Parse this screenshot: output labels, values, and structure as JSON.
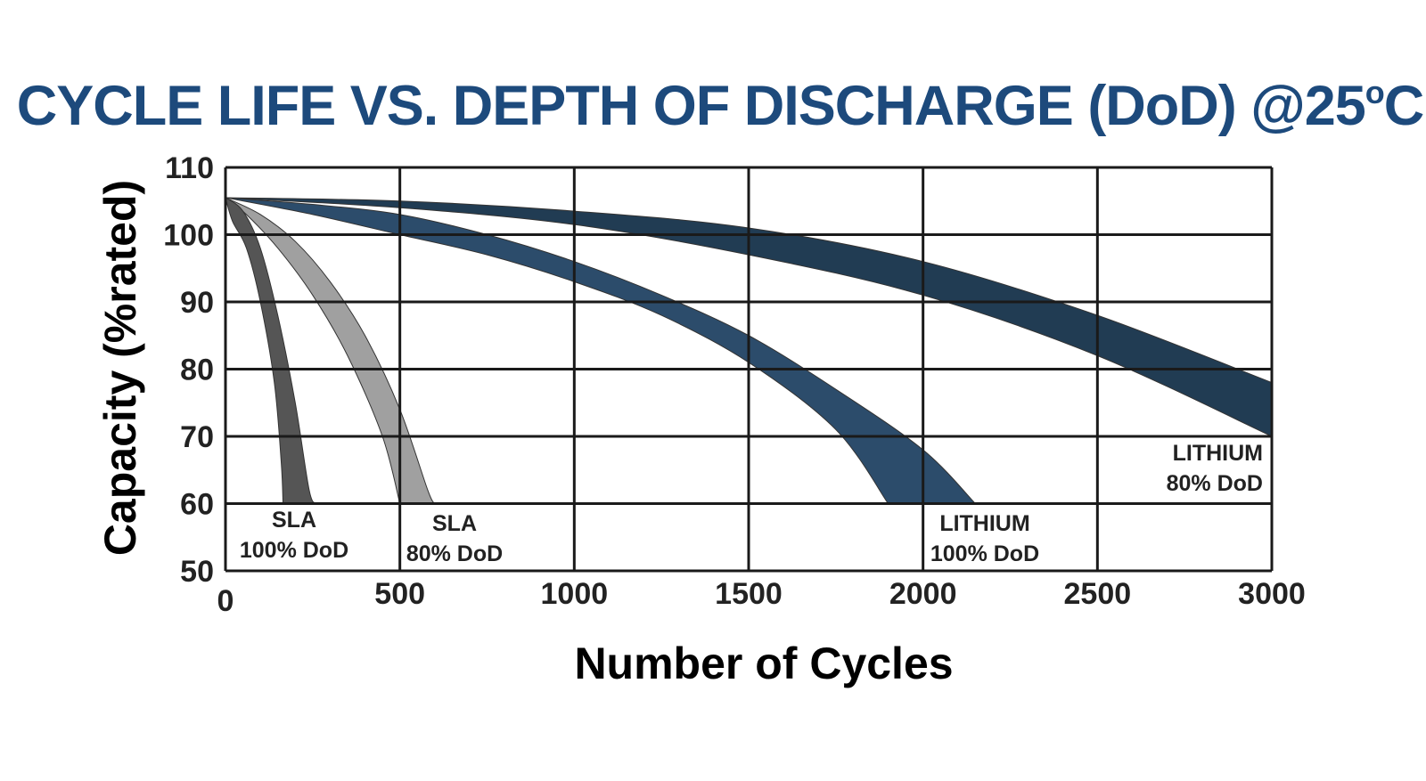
{
  "chart_data": {
    "type": "area",
    "title": "CYCLE LIFE VS. DEPTH OF DISCHARGE (DoD) @25",
    "title_sup": "o",
    "title_suffix": "C",
    "xlabel": "Number of Cycles",
    "ylabel": "Capacity (%rated)",
    "xlim": [
      0,
      3000
    ],
    "ylim": [
      50,
      110
    ],
    "x_ticks": [
      0,
      500,
      1000,
      1500,
      2000,
      2500,
      3000
    ],
    "y_ticks": [
      50,
      60,
      70,
      80,
      90,
      100,
      110
    ],
    "grid": true,
    "colors": {
      "title": "#1d4a7c",
      "grid": "#1a1a1a"
    },
    "series": [
      {
        "name_line1": "SLA",
        "name_line2": "100% DoD",
        "color": "#555555",
        "upper": [
          [
            0,
            105.5
          ],
          [
            50,
            103.5
          ],
          [
            100,
            98
          ],
          [
            150,
            88
          ],
          [
            200,
            75
          ],
          [
            240,
            62
          ],
          [
            260,
            60
          ]
        ],
        "lower": [
          [
            0,
            105.5
          ],
          [
            20,
            102
          ],
          [
            60,
            98
          ],
          [
            100,
            90
          ],
          [
            140,
            78
          ],
          [
            160,
            66
          ],
          [
            165,
            60
          ]
        ]
      },
      {
        "name_line1": "SLA",
        "name_line2": "80% DoD",
        "color": "#a0a0a0",
        "upper": [
          [
            0,
            105.5
          ],
          [
            100,
            103
          ],
          [
            200,
            99
          ],
          [
            300,
            93
          ],
          [
            400,
            85
          ],
          [
            500,
            74
          ],
          [
            580,
            62
          ],
          [
            600,
            60
          ]
        ],
        "lower": [
          [
            0,
            105.5
          ],
          [
            60,
            103
          ],
          [
            150,
            98
          ],
          [
            250,
            91
          ],
          [
            350,
            82
          ],
          [
            450,
            70
          ],
          [
            500,
            60
          ]
        ]
      },
      {
        "name_line1": "LITHIUM",
        "name_line2": "100% DoD",
        "color": "#2c4c6b",
        "upper": [
          [
            0,
            105.5
          ],
          [
            250,
            104.5
          ],
          [
            500,
            103
          ],
          [
            750,
            100
          ],
          [
            1000,
            96
          ],
          [
            1250,
            91
          ],
          [
            1500,
            85
          ],
          [
            1750,
            77
          ],
          [
            2000,
            68
          ],
          [
            2150,
            60
          ]
        ],
        "lower": [
          [
            0,
            105.5
          ],
          [
            250,
            103
          ],
          [
            500,
            100
          ],
          [
            750,
            97
          ],
          [
            1000,
            93
          ],
          [
            1250,
            88
          ],
          [
            1500,
            81
          ],
          [
            1750,
            71
          ],
          [
            1900,
            60
          ]
        ]
      },
      {
        "name_line1": "LITHIUM",
        "name_line2": "80% DoD",
        "color": "#213c53",
        "upper": [
          [
            0,
            105.5
          ],
          [
            500,
            105
          ],
          [
            1000,
            103.5
          ],
          [
            1500,
            101
          ],
          [
            2000,
            96
          ],
          [
            2500,
            88
          ],
          [
            3000,
            78
          ]
        ],
        "lower": [
          [
            0,
            105.5
          ],
          [
            500,
            104
          ],
          [
            1000,
            101.5
          ],
          [
            1500,
            97
          ],
          [
            2000,
            91
          ],
          [
            2500,
            82
          ],
          [
            3000,
            70
          ]
        ]
      }
    ]
  }
}
